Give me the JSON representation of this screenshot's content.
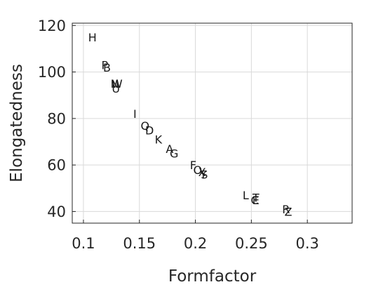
{
  "chart_data": {
    "type": "scatter",
    "title": "",
    "xlabel": "Formfactor",
    "ylabel": "Elongatedness",
    "xlim": [
      0.09,
      0.34
    ],
    "ylim": [
      35,
      121
    ],
    "xticks": [
      0.1,
      0.15,
      0.2,
      0.25,
      0.3
    ],
    "xtick_labels": [
      "0.1",
      "0.15",
      "0.2",
      "0.25",
      "0.3"
    ],
    "yticks": [
      40,
      60,
      80,
      100,
      120
    ],
    "ytick_labels": [
      "40",
      "60",
      "80",
      "100",
      "120"
    ],
    "grid": true,
    "points": [
      {
        "label": "H",
        "x": 0.108,
        "y": 115
      },
      {
        "label": "P",
        "x": 0.119,
        "y": 103
      },
      {
        "label": "B",
        "x": 0.121,
        "y": 102
      },
      {
        "label": "N",
        "x": 0.128,
        "y": 95
      },
      {
        "label": "W",
        "x": 0.13,
        "y": 95
      },
      {
        "label": "U",
        "x": 0.129,
        "y": 93
      },
      {
        "label": "I",
        "x": 0.146,
        "y": 82
      },
      {
        "label": "Q",
        "x": 0.155,
        "y": 77
      },
      {
        "label": "D",
        "x": 0.159,
        "y": 75
      },
      {
        "label": "K",
        "x": 0.167,
        "y": 71
      },
      {
        "label": "A",
        "x": 0.177,
        "y": 67
      },
      {
        "label": "G",
        "x": 0.181,
        "y": 65
      },
      {
        "label": "F",
        "x": 0.198,
        "y": 60
      },
      {
        "label": "O",
        "x": 0.202,
        "y": 58
      },
      {
        "label": "X",
        "x": 0.206,
        "y": 57
      },
      {
        "label": "Y",
        "x": 0.207,
        "y": 56
      },
      {
        "label": "S",
        "x": 0.208,
        "y": 56
      },
      {
        "label": "L",
        "x": 0.245,
        "y": 47
      },
      {
        "label": "C",
        "x": 0.253,
        "y": 45
      },
      {
        "label": "E",
        "x": 0.254,
        "y": 45
      },
      {
        "label": "T",
        "x": 0.254,
        "y": 46
      },
      {
        "label": "R",
        "x": 0.281,
        "y": 41
      },
      {
        "label": "Z",
        "x": 0.283,
        "y": 40
      }
    ]
  }
}
